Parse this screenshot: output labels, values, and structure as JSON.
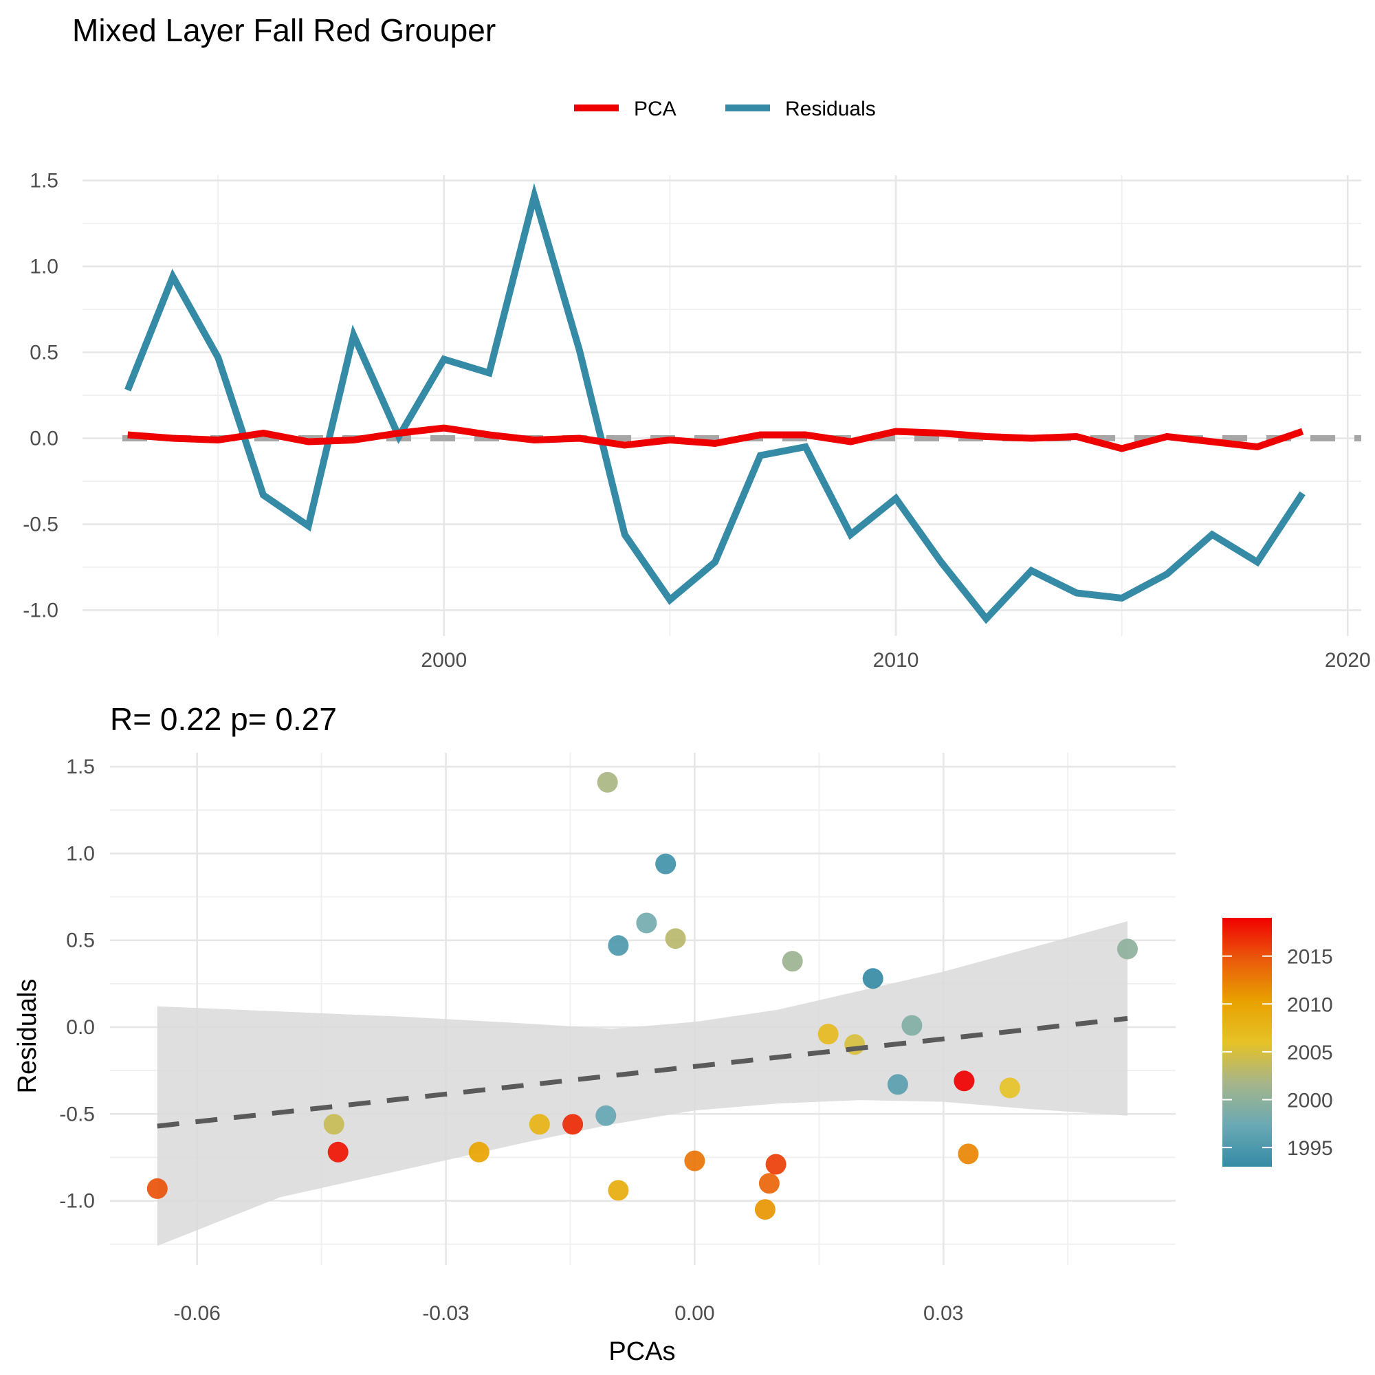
{
  "title": "Mixed Layer Fall Red Grouper",
  "colors": {
    "pca": "#ee0000",
    "residuals": "#358ba5",
    "zero_line": "#a6a6a6",
    "fit_line": "#5a5a5a",
    "ribbon": "#d9d9d9",
    "gradient": [
      "#358ba5",
      "#6aa9b4",
      "#a5b58b",
      "#e6c227",
      "#e8a100",
      "#ea5a0c",
      "#f00000"
    ]
  },
  "chart_data": [
    {
      "type": "line",
      "title": "Mixed Layer Fall Red Grouper",
      "legend": {
        "position": "top",
        "entries": [
          "PCA",
          "Residuals"
        ]
      },
      "x": [
        1993,
        1994,
        1995,
        1996,
        1997,
        1998,
        1999,
        2000,
        2001,
        2002,
        2003,
        2004,
        2005,
        2006,
        2007,
        2008,
        2009,
        2010,
        2011,
        2012,
        2013,
        2014,
        2015,
        2016,
        2017,
        2018,
        2019
      ],
      "series": [
        {
          "name": "PCA",
          "values": [
            0.02,
            0.0,
            -0.01,
            0.03,
            -0.02,
            -0.01,
            0.03,
            0.06,
            0.02,
            -0.01,
            0.0,
            -0.04,
            -0.01,
            -0.03,
            0.02,
            0.02,
            -0.02,
            0.04,
            0.03,
            0.01,
            0.0,
            0.01,
            -0.06,
            0.01,
            -0.02,
            -0.05,
            0.04
          ]
        },
        {
          "name": "Residuals",
          "values": [
            0.28,
            0.94,
            0.47,
            -0.33,
            -0.51,
            0.6,
            0.01,
            0.46,
            0.38,
            1.41,
            0.51,
            -0.56,
            -0.94,
            -0.72,
            -0.1,
            -0.05,
            -0.56,
            -0.35,
            -0.72,
            -1.05,
            -0.77,
            -0.9,
            -0.93,
            -0.79,
            -0.56,
            -0.72,
            -0.32
          ]
        }
      ],
      "reference_line": 0,
      "xlim": [
        1992,
        2020.3
      ],
      "ylim": [
        -1.15,
        1.53
      ],
      "x_ticks": [
        2000,
        2010,
        2020
      ],
      "y_ticks": [
        -1.0,
        -0.5,
        0.0,
        0.5,
        1.0,
        1.5
      ],
      "y_tick_labels": [
        "-1.0",
        "-0.5",
        "0.0",
        "0.5",
        "1.0",
        "1.5"
      ],
      "grid": true
    },
    {
      "type": "scatter",
      "subtitle": "R= 0.22  p= 0.27",
      "xlabel": "PCAs",
      "ylabel": "Residuals",
      "points": [
        {
          "year": 1993,
          "x": 0.0215,
          "y": 0.28
        },
        {
          "year": 1994,
          "x": -0.0035,
          "y": 0.94
        },
        {
          "year": 1995,
          "x": -0.0092,
          "y": 0.47
        },
        {
          "year": 1996,
          "x": 0.0245,
          "y": -0.33
        },
        {
          "year": 1997,
          "x": -0.0107,
          "y": -0.51
        },
        {
          "year": 1998,
          "x": -0.0058,
          "y": 0.6
        },
        {
          "year": 1999,
          "x": 0.0262,
          "y": 0.01
        },
        {
          "year": 2000,
          "x": 0.0522,
          "y": 0.45
        },
        {
          "year": 2001,
          "x": 0.0118,
          "y": 0.38
        },
        {
          "year": 2002,
          "x": -0.0105,
          "y": 1.41
        },
        {
          "year": 2003,
          "x": -0.0023,
          "y": 0.51
        },
        {
          "year": 2004,
          "x": -0.0435,
          "y": -0.56
        },
        {
          "year": 2005,
          "x": 0.0193,
          "y": -0.1
        },
        {
          "year": 2006,
          "x": 0.038,
          "y": -0.35
        },
        {
          "year": 2007,
          "x": 0.0161,
          "y": -0.04
        },
        {
          "year": 2008,
          "x": -0.0187,
          "y": -0.56
        },
        {
          "year": 2009,
          "x": -0.0092,
          "y": -0.94
        },
        {
          "year": 2010,
          "x": -0.026,
          "y": -0.72
        },
        {
          "year": 2011,
          "x": 0.0085,
          "y": -1.05
        },
        {
          "year": 2012,
          "x": 0.033,
          "y": -0.73
        },
        {
          "year": 2013,
          "x": 0.0,
          "y": -0.77
        },
        {
          "year": 2014,
          "x": 0.009,
          "y": -0.9
        },
        {
          "year": 2015,
          "x": -0.0648,
          "y": -0.93
        },
        {
          "year": 2016,
          "x": 0.0098,
          "y": -0.79
        },
        {
          "year": 2017,
          "x": -0.0147,
          "y": -0.56
        },
        {
          "year": 2018,
          "x": -0.043,
          "y": -0.72
        },
        {
          "year": 2019,
          "x": 0.0325,
          "y": -0.31
        }
      ],
      "fit": {
        "x": [
          -0.0648,
          0.0522
        ],
        "y": [
          -0.57,
          0.05
        ]
      },
      "ribbon": {
        "x": [
          -0.0648,
          -0.05,
          -0.035,
          -0.02,
          -0.01,
          0.0,
          0.01,
          0.02,
          0.03,
          0.04,
          0.0522
        ],
        "upper": [
          0.12,
          0.09,
          0.06,
          0.02,
          -0.01,
          0.03,
          0.1,
          0.21,
          0.32,
          0.45,
          0.61
        ],
        "lower": [
          -1.26,
          -0.98,
          -0.82,
          -0.66,
          -0.56,
          -0.48,
          -0.44,
          -0.42,
          -0.43,
          -0.47,
          -0.51
        ]
      },
      "xlim": [
        -0.0705,
        0.058
      ],
      "ylim": [
        -1.37,
        1.58
      ],
      "x_ticks": [
        -0.06,
        -0.03,
        0.0,
        0.03
      ],
      "x_tick_labels": [
        "-0.06",
        "-0.03",
        "0.00",
        "0.03"
      ],
      "y_ticks": [
        -1.0,
        -0.5,
        0.0,
        0.5,
        1.0,
        1.5
      ],
      "y_tick_labels": [
        "-1.0",
        "-0.5",
        "0.0",
        "0.5",
        "1.0",
        "1.5"
      ],
      "colorbar": {
        "ticks": [
          1995,
          2000,
          2005,
          2010,
          2015
        ],
        "range": [
          1993,
          2019
        ]
      },
      "grid": true
    }
  ]
}
